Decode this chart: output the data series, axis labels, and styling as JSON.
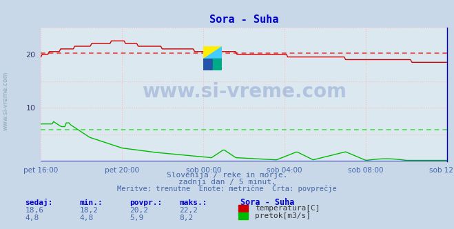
{
  "title": "Sora - Suha",
  "bg_color": "#c8d8e8",
  "plot_bg_color": "#dce8f0",
  "title_color": "#0000cc",
  "xlabel_color": "#4466aa",
  "text_color": "#4466aa",
  "ytick_color": "#333366",
  "x_labels": [
    "pet 16:00",
    "pet 20:00",
    "sob 00:00",
    "sob 04:00",
    "sob 08:00",
    "sob 12:00"
  ],
  "x_ticks_norm": [
    0.0,
    0.2,
    0.4,
    0.6,
    0.8,
    1.0
  ],
  "ylim": [
    0,
    25
  ],
  "n_points": 289,
  "temp_color": "#cc0000",
  "flow_color": "#00bb00",
  "avg_temp_color": "#dd4444",
  "avg_flow_color": "#44dd44",
  "avg_temp": 20.2,
  "avg_flow": 5.9,
  "watermark_text": "www.si-vreme.com",
  "watermark_color": "#3355aa",
  "sidebar_text": "www.si-vreme.com",
  "subtitle1": "Slovenija / reke in morje.",
  "subtitle2": "zadnji dan / 5 minut.",
  "subtitle3": "Meritve: trenutne  Enote: metrične  Črta: povprečje",
  "legend_title": "Sora - Suha",
  "legend_temp_label": "temperatura[C]",
  "legend_flow_label": "pretok[m3/s]",
  "stats_headers": [
    "sedaj:",
    "min.:",
    "povpr.:",
    "maks.:"
  ],
  "stats_temp": [
    "18,6",
    "18,2",
    "20,2",
    "22,2"
  ],
  "stats_flow": [
    "4,8",
    "4,8",
    "5,9",
    "8,2"
  ],
  "grid_pink": "#ffbbbb",
  "grid_light": "#ccddee",
  "spine_blue": "#0000bb"
}
